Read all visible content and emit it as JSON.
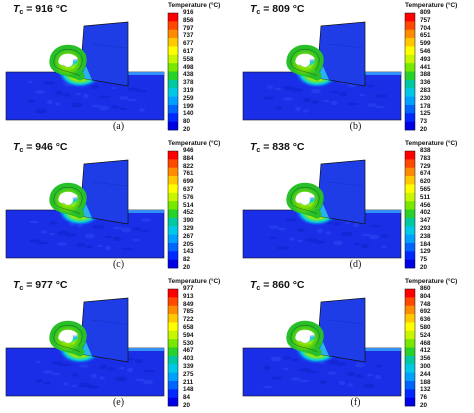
{
  "legend_title": "Temperature (°C)",
  "colorbar_colors": [
    "#ff0000",
    "#ff4800",
    "#ff8c00",
    "#ffc800",
    "#ffff00",
    "#c8f500",
    "#78e800",
    "#28d228",
    "#00c8a0",
    "#00c8e6",
    "#00a0ff",
    "#0064ff",
    "#0028ff",
    "#0000e6"
  ],
  "panels": [
    {
      "tc_symbol": "T",
      "tc_sub": "c",
      "tc_value": " = 916 °C",
      "letter": "(a)",
      "ticks": [
        "916",
        "856",
        "797",
        "737",
        "677",
        "617",
        "558",
        "498",
        "438",
        "378",
        "319",
        "259",
        "199",
        "140",
        "80",
        "20"
      ]
    },
    {
      "tc_symbol": "T",
      "tc_sub": "c",
      "tc_value": " = 809 °C",
      "letter": "(b)",
      "ticks": [
        "809",
        "757",
        "704",
        "651",
        "599",
        "546",
        "493",
        "441",
        "388",
        "336",
        "283",
        "230",
        "178",
        "125",
        "73",
        "20"
      ]
    },
    {
      "tc_symbol": "T",
      "tc_sub": "c",
      "tc_value": " = 946 °C",
      "letter": "(c)",
      "ticks": [
        "946",
        "884",
        "822",
        "761",
        "699",
        "637",
        "576",
        "514",
        "452",
        "390",
        "329",
        "267",
        "205",
        "143",
        "82",
        "20"
      ]
    },
    {
      "tc_symbol": "T",
      "tc_sub": "c",
      "tc_value": " = 838 °C",
      "letter": "(d)",
      "ticks": [
        "838",
        "783",
        "729",
        "674",
        "620",
        "565",
        "511",
        "456",
        "402",
        "347",
        "293",
        "238",
        "184",
        "129",
        "75",
        "20"
      ]
    },
    {
      "tc_symbol": "T",
      "tc_sub": "c",
      "tc_value": " = 977 °C",
      "letter": "(e)",
      "ticks": [
        "977",
        "913",
        "849",
        "785",
        "722",
        "658",
        "594",
        "530",
        "467",
        "403",
        "339",
        "275",
        "211",
        "148",
        "84",
        "20"
      ]
    },
    {
      "tc_symbol": "T",
      "tc_sub": "c",
      "tc_value": " = 860 °C",
      "letter": "(f)",
      "ticks": [
        "860",
        "804",
        "748",
        "692",
        "636",
        "580",
        "524",
        "468",
        "412",
        "356",
        "300",
        "244",
        "188",
        "132",
        "76",
        "20"
      ]
    }
  ]
}
